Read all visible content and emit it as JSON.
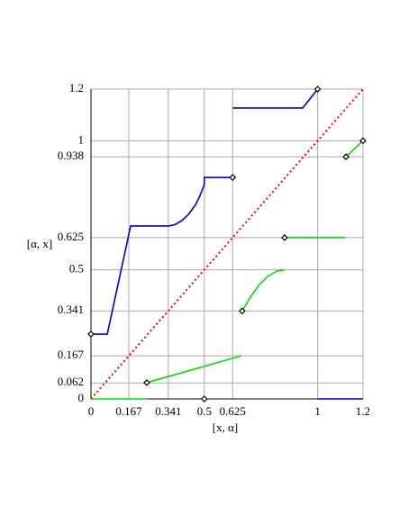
{
  "chart_data": {
    "type": "line",
    "x_label": "[x, α]",
    "y_label": "[α, x]",
    "xlim": [
      0,
      1.2
    ],
    "ylim": [
      0,
      1.2
    ],
    "xticks": [
      0,
      0.167,
      0.341,
      0.5,
      0.625,
      1,
      1.2
    ],
    "yticks": [
      0,
      0.062,
      0.167,
      0.341,
      0.5,
      0.625,
      0.938,
      1,
      1.2
    ],
    "grid": true,
    "series": [
      {
        "color": "#0000cd",
        "style": "solid",
        "mode": "lines",
        "x": [
          0,
          0.072,
          0.175,
          0.341,
          0.37,
          0.4,
          0.43,
          0.46,
          0.48,
          0.5,
          0.5,
          0.625,
          null,
          0.625,
          0.934,
          1,
          null,
          1,
          1.2
        ],
        "values": [
          0.251,
          0.251,
          0.67,
          0.67,
          0.675,
          0.69,
          0.715,
          0.75,
          0.785,
          0.83,
          0.858,
          0.858,
          null,
          1.127,
          1.127,
          1.2,
          null,
          0,
          0
        ]
      },
      {
        "color": "#00e000",
        "style": "solid",
        "mode": "lines",
        "x": [
          0,
          0.254,
          null,
          0.246,
          0.663,
          null,
          0.667,
          0.7,
          0.74,
          0.78,
          0.82,
          0.854,
          null,
          0.854,
          1.12,
          null,
          1.125,
          1.2
        ],
        "values": [
          0,
          0,
          null,
          0.063,
          0.167,
          null,
          0.341,
          0.39,
          0.44,
          0.475,
          0.495,
          0.5,
          null,
          0.625,
          0.625,
          null,
          0.938,
          1
        ]
      },
      {
        "color": "#ff0000",
        "style": "dotted",
        "mode": "lines",
        "x": [
          0,
          1.2
        ],
        "values": [
          0,
          1.2
        ]
      },
      {
        "color": "#000000",
        "style": "solid",
        "mode": "markers",
        "x": [
          0,
          0.625,
          1,
          0.5,
          0.246,
          0.667,
          0.854,
          1.125,
          1.2
        ],
        "values": [
          0.251,
          0.858,
          1.2,
          0,
          0.063,
          0.341,
          0.625,
          0.938,
          1
        ]
      }
    ]
  }
}
